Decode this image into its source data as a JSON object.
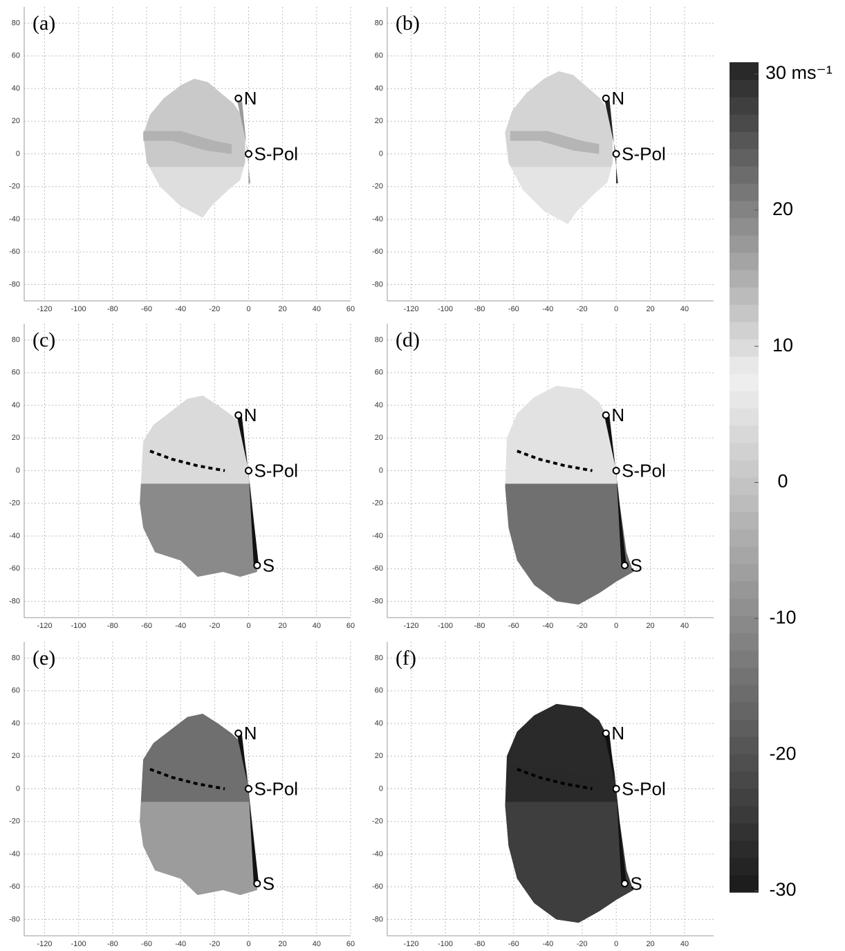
{
  "chart_data": [
    {
      "type": "map",
      "title": "(a)",
      "xlim": [
        -132,
        60
      ],
      "ylim": [
        -90,
        90
      ],
      "xticks": [
        -120,
        -100,
        -80,
        -60,
        -40,
        -20,
        0,
        20,
        40,
        60
      ],
      "yticks": [
        -80,
        -60,
        -40,
        -20,
        0,
        20,
        40,
        60,
        80
      ],
      "grid": true,
      "stations": {
        "labels": [
          "N",
          "S-Pol"
        ],
        "x": [
          -6,
          0
        ],
        "y": [
          34,
          0
        ]
      }
    },
    {
      "type": "map",
      "title": "(b)",
      "xlim": [
        -134,
        57
      ],
      "ylim": [
        -90,
        90
      ],
      "xticks": [
        -120,
        -100,
        -80,
        -60,
        -40,
        -20,
        0,
        20,
        40
      ],
      "yticks": [
        -80,
        -60,
        -40,
        -20,
        0,
        20,
        40,
        60,
        80
      ],
      "grid": true,
      "stations": {
        "labels": [
          "N",
          "S-Pol"
        ],
        "x": [
          -6,
          0
        ],
        "y": [
          34,
          0
        ]
      }
    },
    {
      "type": "map",
      "title": "(c)",
      "xlim": [
        -132,
        60
      ],
      "ylim": [
        -90,
        90
      ],
      "xticks": [
        -120,
        -100,
        -80,
        -60,
        -40,
        -20,
        0,
        20,
        40,
        60
      ],
      "yticks": [
        -80,
        -60,
        -40,
        -20,
        0,
        20,
        40,
        60,
        80
      ],
      "grid": true,
      "stations": {
        "labels": [
          "N",
          "S-Pol",
          "S"
        ],
        "x": [
          -6,
          0,
          5
        ],
        "y": [
          34,
          0,
          -58
        ]
      }
    },
    {
      "type": "map",
      "title": "(d)",
      "xlim": [
        -134,
        57
      ],
      "ylim": [
        -90,
        90
      ],
      "xticks": [
        -120,
        -100,
        -80,
        -60,
        -40,
        -20,
        0,
        20,
        40
      ],
      "yticks": [
        -80,
        -60,
        -40,
        -20,
        0,
        20,
        40,
        60,
        80
      ],
      "grid": true,
      "stations": {
        "labels": [
          "N",
          "S-Pol",
          "S"
        ],
        "x": [
          -6,
          0,
          5
        ],
        "y": [
          34,
          0,
          -58
        ]
      }
    },
    {
      "type": "map",
      "title": "(e)",
      "xlim": [
        -132,
        60
      ],
      "ylim": [
        -90,
        90
      ],
      "xticks": [
        -120,
        -100,
        -80,
        -60,
        -40,
        -20,
        0,
        20,
        40,
        60
      ],
      "yticks": [
        -80,
        -60,
        -40,
        -20,
        0,
        20,
        40,
        60,
        80
      ],
      "grid": true,
      "stations": {
        "labels": [
          "N",
          "S-Pol",
          "S"
        ],
        "x": [
          -6,
          0,
          5
        ],
        "y": [
          34,
          0,
          -58
        ]
      }
    },
    {
      "type": "map",
      "title": "(f)",
      "xlim": [
        -134,
        57
      ],
      "ylim": [
        -90,
        90
      ],
      "xticks": [
        -120,
        -100,
        -80,
        -60,
        -40,
        -20,
        0,
        20,
        40
      ],
      "yticks": [
        -80,
        -60,
        -40,
        -20,
        0,
        20,
        40,
        60,
        80
      ],
      "grid": true,
      "stations": {
        "labels": [
          "N",
          "S-Pol",
          "S"
        ],
        "x": [
          -6,
          0,
          5
        ],
        "y": [
          34,
          0,
          -58
        ]
      }
    },
    {
      "type": "colorbar",
      "lim": [
        -30,
        30
      ],
      "ticks": [
        {
          "value": 30,
          "label": "30 ms⁻¹"
        },
        20,
        10,
        0,
        -10,
        -20,
        -30
      ]
    }
  ]
}
